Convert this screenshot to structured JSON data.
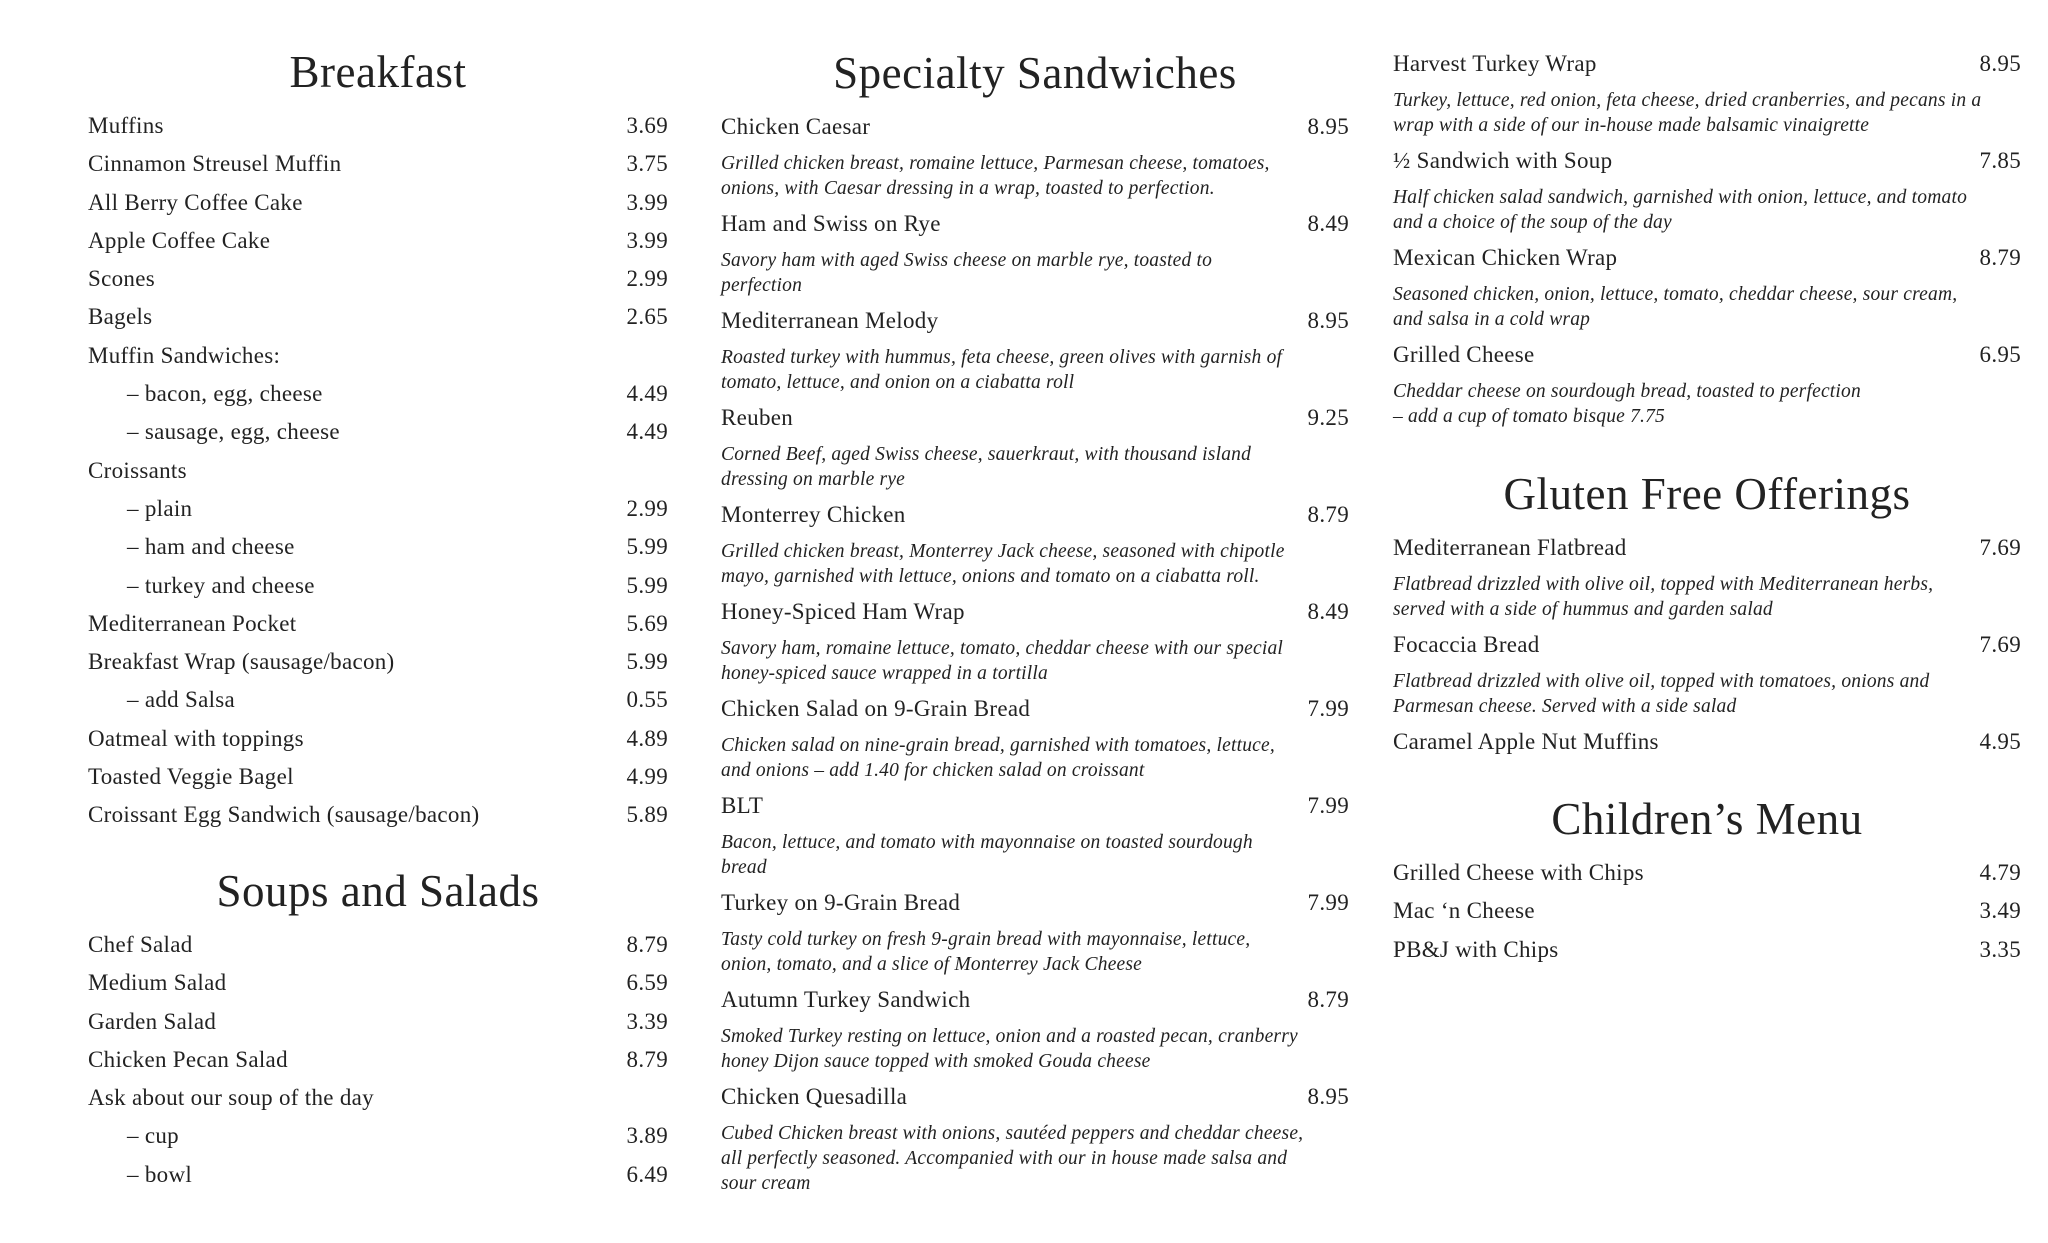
{
  "breakfast": {
    "title": "Breakfast",
    "items": [
      {
        "name": "Muffins",
        "price": "3.69"
      },
      {
        "name": "Cinnamon Streusel Muffin",
        "price": "3.75"
      },
      {
        "name": "All Berry Coffee Cake",
        "price": "3.99"
      },
      {
        "name": "Apple Coffee Cake",
        "price": "3.99"
      },
      {
        "name": "Scones",
        "price": "2.99"
      },
      {
        "name": "Bagels",
        "price": "2.65"
      },
      {
        "name": "Muffin Sandwiches:",
        "price": ""
      },
      {
        "name": "– bacon, egg, cheese",
        "price": "4.49",
        "indent": true
      },
      {
        "name": "– sausage, egg, cheese",
        "price": "4.49",
        "indent": true
      },
      {
        "name": "Croissants",
        "price": ""
      },
      {
        "name": "– plain",
        "price": "2.99",
        "indent": true
      },
      {
        "name": "– ham and cheese",
        "price": "5.99",
        "indent": true
      },
      {
        "name": "– turkey and cheese",
        "price": "5.99",
        "indent": true
      },
      {
        "name": "Mediterranean Pocket",
        "price": "5.69"
      },
      {
        "name": "Breakfast Wrap (sausage/bacon)",
        "price": "5.99"
      },
      {
        "name": "– add Salsa",
        "price": "0.55",
        "indent": true
      },
      {
        "name": "Oatmeal with toppings",
        "price": "4.89"
      },
      {
        "name": "Toasted Veggie Bagel",
        "price": "4.99"
      },
      {
        "name": "Croissant Egg Sandwich (sausage/bacon)",
        "price": "5.89"
      }
    ]
  },
  "soups_salads": {
    "title": "Soups and Salads",
    "items": [
      {
        "name": "Chef Salad",
        "price": "8.79"
      },
      {
        "name": "Medium Salad",
        "price": "6.59"
      },
      {
        "name": "Garden Salad",
        "price": "3.39"
      },
      {
        "name": "Chicken Pecan Salad",
        "price": "8.79"
      },
      {
        "name": "Ask about our soup of the day",
        "price": ""
      },
      {
        "name": "– cup",
        "price": "3.89",
        "indent": true
      },
      {
        "name": "– bowl",
        "price": "6.49",
        "indent": true
      }
    ]
  },
  "specialty": {
    "title": "Specialty Sandwiches",
    "items": [
      {
        "name": "Chicken Caesar",
        "price": "8.95",
        "desc": [
          "Grilled chicken breast, romaine lettuce, Parmesan cheese, tomatoes,",
          "onions, with Caesar dressing in a wrap, toasted to perfection."
        ]
      },
      {
        "name": "Ham and Swiss on Rye",
        "price": "8.49",
        "desc": [
          "Savory ham with aged Swiss cheese on marble rye, toasted to",
          "perfection"
        ]
      },
      {
        "name": "Mediterranean Melody",
        "price": "8.95",
        "desc": [
          "Roasted turkey with hummus, feta cheese, green olives with garnish of",
          "tomato, lettuce, and onion on a ciabatta roll"
        ]
      },
      {
        "name": "Reuben",
        "price": "9.25",
        "desc": [
          "Corned Beef, aged Swiss cheese, sauerkraut, with thousand island",
          "dressing on marble rye"
        ]
      },
      {
        "name": "Monterrey Chicken",
        "price": "8.79",
        "desc": [
          "Grilled chicken breast, Monterrey Jack cheese, seasoned with chipotle",
          "mayo, garnished with lettuce, onions and tomato on a ciabatta roll."
        ]
      },
      {
        "name": "Honey-Spiced Ham Wrap",
        "price": "8.49",
        "desc": [
          "Savory ham, romaine lettuce, tomato, cheddar cheese with our special",
          "honey-spiced sauce wrapped in a tortilla"
        ]
      },
      {
        "name": "Chicken Salad on 9-Grain Bread",
        "price": "7.99",
        "desc": [
          "Chicken salad on nine-grain bread, garnished with tomatoes, lettuce,",
          "and onions – add 1.40 for chicken salad on croissant"
        ]
      },
      {
        "name": "BLT",
        "price": "7.99",
        "desc": [
          "Bacon, lettuce, and tomato with mayonnaise on toasted sourdough",
          "bread"
        ]
      },
      {
        "name": "Turkey on 9-Grain Bread",
        "price": "7.99",
        "desc": [
          "Tasty cold turkey on fresh 9-grain bread with mayonnaise, lettuce,",
          "onion, tomato, and a slice of Monterrey Jack Cheese"
        ]
      },
      {
        "name": "Autumn Turkey Sandwich",
        "price": "8.79",
        "desc": [
          "Smoked Turkey resting on lettuce, onion and a roasted pecan, cranberry",
          "honey Dijon sauce topped with smoked Gouda cheese"
        ]
      },
      {
        "name": "Chicken Quesadilla",
        "price": "8.95",
        "desc": [
          "Cubed Chicken breast with onions, sautéed peppers and cheddar cheese,",
          "all perfectly seasoned. Accompanied with our in house made salsa and",
          "sour cream"
        ]
      }
    ]
  },
  "specialty_cont": {
    "title": "",
    "items": [
      {
        "name": "Harvest Turkey Wrap",
        "price": "8.95",
        "desc": [
          "Turkey, lettuce, red onion, feta cheese, dried cranberries, and pecans in a",
          "wrap with a side of our in-house made balsamic vinaigrette"
        ]
      },
      {
        "name": "½ Sandwich with Soup",
        "price": "7.85",
        "desc": [
          "Half chicken salad sandwich, garnished with onion, lettuce, and tomato",
          "and a choice of the soup of the day"
        ]
      },
      {
        "name": "Mexican Chicken Wrap",
        "price": "8.79",
        "desc": [
          "Seasoned chicken, onion, lettuce, tomato, cheddar cheese, sour cream,",
          "and salsa in a cold wrap"
        ]
      },
      {
        "name": "Grilled Cheese",
        "price": "6.95",
        "desc": [
          "Cheddar cheese on sourdough bread, toasted to perfection",
          "– add a cup of tomato bisque 7.75"
        ]
      }
    ]
  },
  "gluten_free": {
    "title": "Gluten Free Offerings",
    "items": [
      {
        "name": "Mediterranean Flatbread",
        "price": "7.69",
        "desc": [
          "Flatbread drizzled with olive oil, topped with Mediterranean herbs,",
          "served with a side of hummus and garden salad"
        ]
      },
      {
        "name": "Focaccia Bread",
        "price": "7.69",
        "desc": [
          "Flatbread drizzled with olive oil, topped with tomatoes, onions and",
          "Parmesan cheese. Served with a side salad"
        ]
      },
      {
        "name": "Caramel Apple Nut Muffins",
        "price": "4.95"
      }
    ]
  },
  "childrens": {
    "title": "Children’s Menu",
    "items": [
      {
        "name": "Grilled Cheese with Chips",
        "price": "4.79"
      },
      {
        "name": "Mac ‘n Cheese",
        "price": "3.49"
      },
      {
        "name": "PB&J with Chips",
        "price": "3.35"
      }
    ]
  }
}
